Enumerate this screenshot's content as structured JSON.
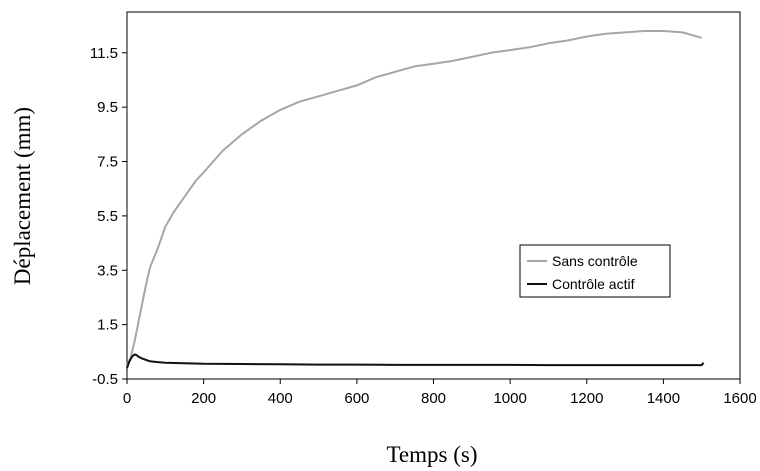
{
  "chart_data": {
    "type": "line",
    "title": "",
    "xlabel": "Temps (s)",
    "ylabel": "Déplacement (mm)",
    "xlim": [
      0,
      1600
    ],
    "ylim": [
      -0.5,
      13.0
    ],
    "xticks": [
      0,
      200,
      400,
      600,
      800,
      1000,
      1200,
      1400,
      1600
    ],
    "xtick_labels": [
      "0",
      "200",
      "400",
      "600",
      "800",
      "1000",
      "1200",
      "1400",
      "1600"
    ],
    "yticks": [
      -0.5,
      1.5,
      3.5,
      5.5,
      7.5,
      9.5,
      11.5
    ],
    "ytick_labels": [
      "-0.5",
      "1.5",
      "3.5",
      "5.5",
      "7.5",
      "9.5",
      "11.5"
    ],
    "grid": false,
    "legend_position": "right",
    "series": [
      {
        "name": "Sans contrôle",
        "color": "#a6a6a6",
        "x": [
          0,
          10,
          20,
          30,
          40,
          50,
          60,
          80,
          100,
          120,
          140,
          160,
          180,
          200,
          225,
          250,
          275,
          300,
          350,
          400,
          450,
          500,
          550,
          600,
          650,
          700,
          750,
          800,
          850,
          900,
          950,
          1000,
          1050,
          1100,
          1150,
          1200,
          1250,
          1300,
          1350,
          1400,
          1450,
          1500
        ],
        "y": [
          0.0,
          0.3,
          0.9,
          1.6,
          2.3,
          3.0,
          3.6,
          4.3,
          5.1,
          5.6,
          6.0,
          6.4,
          6.8,
          7.1,
          7.5,
          7.9,
          8.2,
          8.5,
          9.0,
          9.4,
          9.7,
          9.9,
          10.1,
          10.3,
          10.6,
          10.8,
          11.0,
          11.1,
          11.2,
          11.35,
          11.5,
          11.6,
          11.7,
          11.85,
          11.95,
          12.1,
          12.2,
          12.25,
          12.3,
          12.3,
          12.25,
          12.05
        ]
      },
      {
        "name": "Contrôle actif",
        "color": "#111111",
        "x": [
          0,
          5,
          10,
          15,
          20,
          25,
          30,
          40,
          50,
          60,
          80,
          100,
          150,
          200,
          300,
          400,
          500,
          600,
          700,
          800,
          900,
          1000,
          1100,
          1200,
          1300,
          1400,
          1500,
          1505
        ],
        "y": [
          -0.1,
          0.1,
          0.25,
          0.35,
          0.4,
          0.38,
          0.32,
          0.25,
          0.2,
          0.15,
          0.12,
          0.1,
          0.08,
          0.06,
          0.05,
          0.04,
          0.03,
          0.03,
          0.02,
          0.02,
          0.02,
          0.02,
          0.01,
          0.01,
          0.01,
          0.01,
          0.01,
          0.1
        ]
      }
    ]
  }
}
